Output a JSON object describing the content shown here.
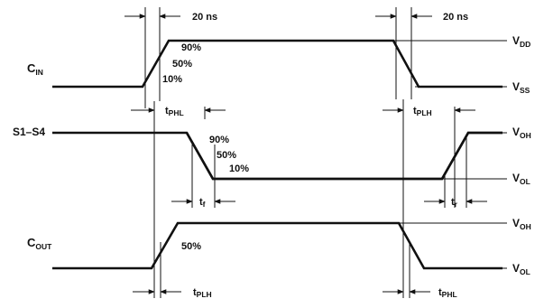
{
  "signals": {
    "cin": {
      "main": "C",
      "sub": "IN"
    },
    "s1s4": "S1–S4",
    "cout": {
      "main": "C",
      "sub": "OUT"
    }
  },
  "rails": {
    "vdd": {
      "main": "V",
      "sub": "DD"
    },
    "vss": {
      "main": "V",
      "sub": "SS"
    },
    "voh1": {
      "main": "V",
      "sub": "OH"
    },
    "vol1": {
      "main": "V",
      "sub": "OL"
    },
    "voh2": {
      "main": "V",
      "sub": "OH"
    },
    "vol2": {
      "main": "V",
      "sub": "OL"
    }
  },
  "levels": {
    "cin_90": "90%",
    "cin_50": "50%",
    "cin_10": "10%",
    "s_90": "90%",
    "s_50": "50%",
    "s_10": "10%",
    "cout_50": "50%"
  },
  "timing": {
    "rise_time_in": "20 ns",
    "fall_time_in": "20 ns",
    "tphl_s": {
      "main": "t",
      "sub": "PHL"
    },
    "tplh_s": {
      "main": "t",
      "sub": "PLH"
    },
    "tf": {
      "main": "t",
      "sub": "f"
    },
    "tr": {
      "main": "t",
      "sub": "r"
    },
    "tplh_c": {
      "main": "t",
      "sub": "PLH"
    },
    "tphl_c": {
      "main": "t",
      "sub": "PHL"
    }
  }
}
